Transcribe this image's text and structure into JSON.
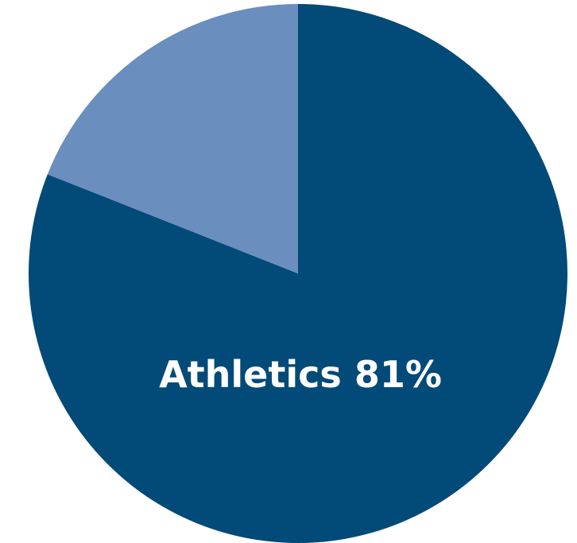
{
  "chart_data": {
    "type": "pie",
    "categories": [
      "Athletics",
      null
    ],
    "values": [
      81,
      19
    ],
    "value_labels": [
      "81%",
      null
    ],
    "colors": [
      "#024a78",
      "#6a8ebd"
    ]
  }
}
